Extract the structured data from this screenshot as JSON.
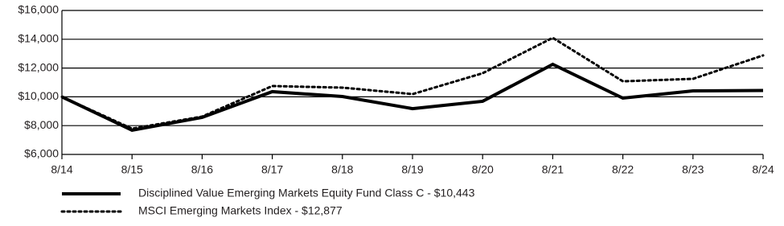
{
  "chart_data": {
    "type": "line",
    "categories": [
      "8/14",
      "8/15",
      "8/16",
      "8/17",
      "8/18",
      "8/19",
      "8/20",
      "8/21",
      "8/22",
      "8/23",
      "8/24"
    ],
    "series": [
      {
        "name": "Disciplined Value Emerging Markets Equity Fund Class C - $10,443",
        "color": "#000000",
        "dash": "solid",
        "values": [
          10000,
          7680,
          8570,
          10360,
          10020,
          9180,
          9690,
          12260,
          9910,
          10410,
          10443
        ]
      },
      {
        "name": "MSCI Emerging Markets Index - $12,877",
        "color": "#000000",
        "dash": "dotted",
        "values": [
          10000,
          7790,
          8630,
          10750,
          10640,
          10190,
          11640,
          14100,
          11080,
          11250,
          12877
        ]
      }
    ],
    "ylim": [
      6000,
      16000
    ],
    "yticks": [
      {
        "value": 6000,
        "label": "$6,000"
      },
      {
        "value": 8000,
        "label": "$8,000"
      },
      {
        "value": 10000,
        "label": "$10,000"
      },
      {
        "value": 12000,
        "label": "$12,000"
      },
      {
        "value": 14000,
        "label": "$14,000"
      },
      {
        "value": 16000,
        "label": "$16,000"
      }
    ],
    "grid": true,
    "legend": "bottom"
  }
}
